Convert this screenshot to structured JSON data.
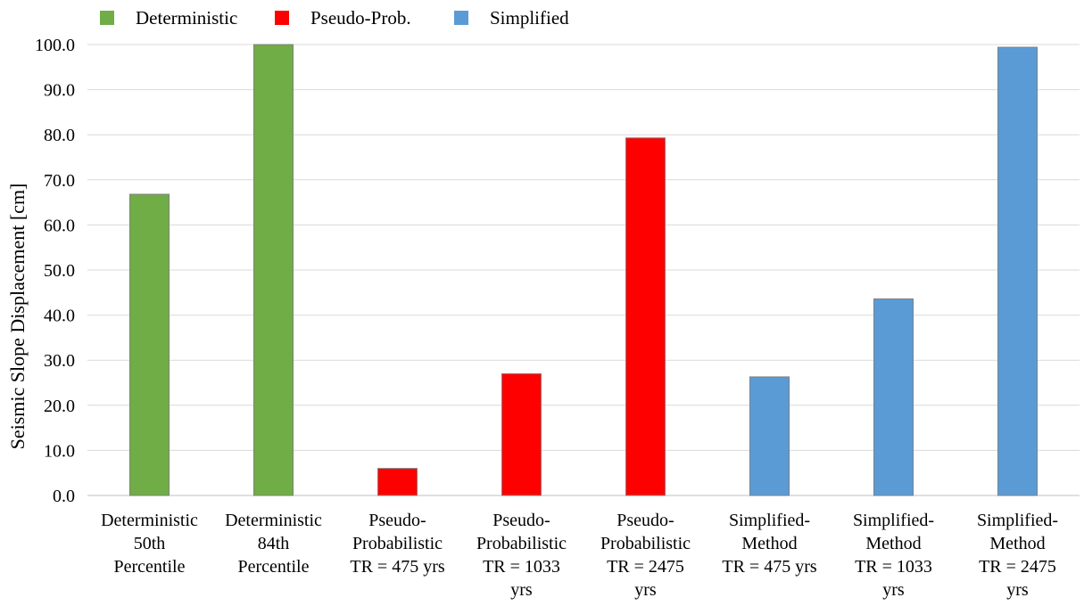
{
  "chart_data": {
    "type": "bar",
    "title": "",
    "xlabel": "",
    "ylabel": "Seismic Slope Displacement [cm]",
    "ylim": [
      0,
      100
    ],
    "ytick_values": [
      0,
      10,
      20,
      30,
      40,
      50,
      60,
      70,
      80,
      90,
      100
    ],
    "ytick_labels": [
      "0.0",
      "10.0",
      "20.0",
      "30.0",
      "40.0",
      "50.0",
      "60.0",
      "70.0",
      "80.0",
      "90.0",
      "100.0"
    ],
    "grid": true,
    "legend_position": "top-left",
    "legend": [
      {
        "name": "Deterministic",
        "color": "#70ad47"
      },
      {
        "name": "Pseudo-Prob.",
        "color": "#ff0000"
      },
      {
        "name": "Simplified",
        "color": "#5b9bd5"
      }
    ],
    "categories": [
      {
        "lines": [
          "Deterministic",
          "50th",
          "Percentile"
        ],
        "value": 66.8,
        "group": 0
      },
      {
        "lines": [
          "Deterministic",
          "84th",
          "Percentile"
        ],
        "value": 100.0,
        "group": 0
      },
      {
        "lines": [
          "Pseudo-",
          "Probabilistic",
          "TR = 475 yrs"
        ],
        "value": 6.0,
        "group": 1
      },
      {
        "lines": [
          "Pseudo-",
          "Probabilistic",
          "TR = 1033",
          "yrs"
        ],
        "value": 27.0,
        "group": 1
      },
      {
        "lines": [
          "Pseudo-",
          "Probabilistic",
          "TR = 2475",
          "yrs"
        ],
        "value": 79.3,
        "group": 1
      },
      {
        "lines": [
          "Simplified-",
          "Method",
          "TR = 475 yrs"
        ],
        "value": 26.3,
        "group": 2
      },
      {
        "lines": [
          "Simplified-",
          "Method",
          "TR = 1033",
          "yrs"
        ],
        "value": 43.6,
        "group": 2
      },
      {
        "lines": [
          "Simplified-",
          "Method",
          "TR = 2475",
          "yrs"
        ],
        "value": 99.4,
        "group": 2
      }
    ]
  }
}
